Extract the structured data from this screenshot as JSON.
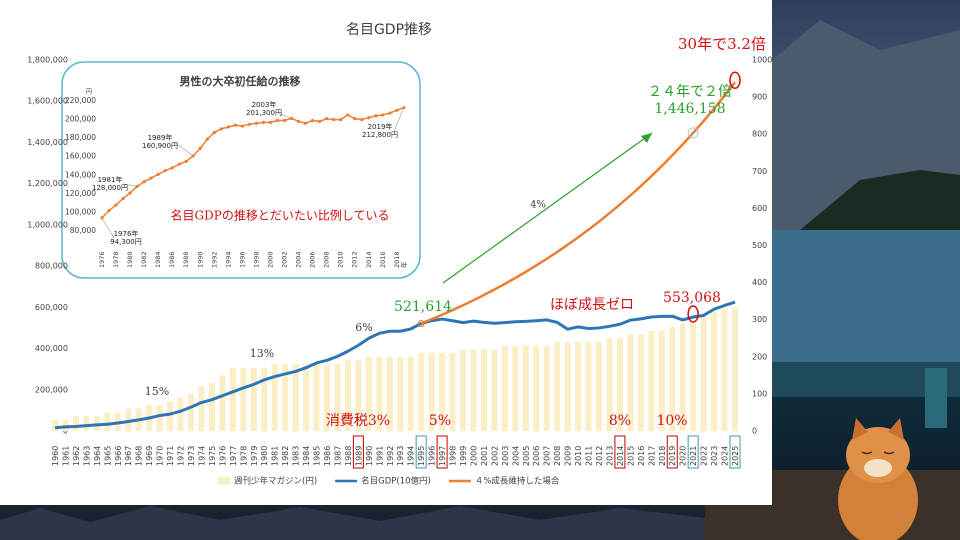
{
  "chart_data": [
    {
      "type": "combo",
      "title": "名目GDP推移",
      "categories": [
        "1960",
        "1961",
        "1962",
        "1963",
        "1964",
        "1965",
        "1966",
        "1967",
        "1968",
        "1969",
        "1970",
        "1971",
        "1972",
        "1973",
        "1974",
        "1975",
        "1976",
        "1977",
        "1978",
        "1979",
        "1980",
        "1981",
        "1982",
        "1983",
        "1984",
        "1985",
        "1986",
        "1987",
        "1988",
        "1989",
        "1990",
        "1991",
        "1992",
        "1993",
        "1994",
        "1995",
        "1996",
        "1997",
        "1998",
        "1999",
        "2000",
        "2001",
        "2002",
        "2003",
        "2004",
        "2005",
        "2006",
        "2007",
        "2008",
        "2009",
        "2010",
        "2011",
        "2012",
        "2013",
        "2014",
        "2015",
        "2016",
        "2017",
        "2018",
        "2019",
        "2020",
        "2021",
        "2022",
        "2023",
        "2024",
        "2025"
      ],
      "series": [
        {
          "name": "週刊少年マガジン(円)",
          "type": "bar",
          "axis": "y2",
          "color": "#fbeec4",
          "values": [
            30,
            30,
            40,
            40,
            40,
            50,
            50,
            60,
            60,
            70,
            70,
            80,
            90,
            100,
            120,
            130,
            150,
            170,
            170,
            170,
            170,
            180,
            180,
            180,
            180,
            180,
            180,
            180,
            190,
            190,
            200,
            200,
            200,
            200,
            200,
            210,
            210,
            210,
            210,
            220,
            220,
            220,
            220,
            230,
            230,
            230,
            230,
            230,
            240,
            240,
            240,
            240,
            240,
            250,
            250,
            260,
            260,
            270,
            270,
            280,
            290,
            300,
            310,
            320,
            330,
            330
          ]
        },
        {
          "name": "名目GDP(10億円)",
          "type": "line",
          "color": "#2e75b6",
          "values": [
            16000,
            20000,
            22000,
            26000,
            30000,
            33000,
            39000,
            46000,
            54000,
            63000,
            75000,
            82000,
            96000,
            116000,
            138000,
            152000,
            171000,
            190000,
            209000,
            226000,
            248000,
            264000,
            277000,
            289000,
            307000,
            330000,
            343000,
            362000,
            387000,
            416000,
            450000,
            474000,
            484000,
            484000,
            495000,
            521614,
            535000,
            543000,
            535000,
            526000,
            533000,
            527000,
            523000,
            526000,
            530000,
            532000,
            535000,
            539000,
            527000,
            494000,
            505000,
            497000,
            500000,
            508000,
            518000,
            538000,
            544000,
            553000,
            556000,
            557000,
            539000,
            553068,
            561000,
            591000,
            609000,
            625000
          ]
        },
        {
          "name": "４%成長維持した場合",
          "type": "line",
          "color": "#ed7d31",
          "values": [
            null,
            null,
            null,
            null,
            null,
            null,
            null,
            null,
            null,
            null,
            null,
            null,
            null,
            null,
            null,
            null,
            null,
            null,
            null,
            null,
            null,
            null,
            null,
            null,
            null,
            null,
            null,
            null,
            null,
            null,
            null,
            null,
            null,
            null,
            null,
            521614,
            542479,
            564178,
            586745,
            610215,
            634624,
            660009,
            686409,
            713866,
            742420,
            772116,
            803001,
            835121,
            868526,
            903267,
            939398,
            976974,
            1016053,
            1056695,
            1098963,
            1142921,
            1188638,
            1236184,
            1285631,
            1337056,
            1390538,
            1446158,
            1504004,
            1564164,
            1626730,
            1691799
          ]
        }
      ],
      "ylim": [
        0,
        1800000
      ],
      "yticks": [
        0,
        {
          "value": 200000,
          "label": "200,000"
        },
        {
          "value": 400000,
          "label": "400,000"
        },
        {
          "value": 600000,
          "label": "600,000"
        },
        {
          "value": 800000,
          "label": "800,000"
        },
        {
          "value": 1000000,
          "label": "1,000,000"
        },
        {
          "value": 1200000,
          "label": "1,200,000"
        },
        {
          "value": 1400000,
          "label": "1,400,000"
        },
        {
          "value": 1600000,
          "label": "1,600,000"
        },
        {
          "value": 1800000,
          "label": "1,800,000"
        }
      ],
      "y2lim": [
        0,
        1000
      ],
      "y2ticks": [
        0,
        100,
        200,
        300,
        400,
        500,
        600,
        700,
        800,
        900,
        1000
      ],
      "grid": false,
      "legend": "bottom",
      "annotations": [
        "30年で3.2倍",
        "２４年で２倍",
        "1,446,158",
        "4%",
        "521,614",
        "ほぼ成長ゼロ",
        "553,068",
        "6%",
        "13%",
        "15%",
        "消費税3%",
        "5%",
        "8%",
        "10%"
      ]
    },
    {
      "type": "line",
      "title": "男性の大卒初任給の推移",
      "y_unit": "円",
      "categories": [
        "1976",
        null,
        "1978",
        null,
        "1980",
        null,
        "1982",
        null,
        "1984",
        null,
        "1986",
        null,
        "1988",
        null,
        "1990",
        null,
        "1992",
        null,
        "1994",
        null,
        "1996",
        null,
        "1998",
        null,
        "2000",
        null,
        "2002",
        null,
        "2004",
        null,
        "2006",
        null,
        "2008",
        null,
        "2010",
        null,
        "2012",
        null,
        "2014",
        null,
        "2016",
        null,
        "2018",
        "年"
      ],
      "series": [
        {
          "name": "初任給",
          "color": "#ed7d31",
          "values": [
            94300,
            102000,
            108000,
            115000,
            121000,
            128000,
            133000,
            137000,
            141000,
            145000,
            148000,
            152000,
            155000,
            160900,
            169000,
            179000,
            186000,
            190000,
            192000,
            194000,
            193000,
            195000,
            196000,
            197000,
            197000,
            199000,
            199000,
            201300,
            198000,
            196000,
            199000,
            198000,
            201000,
            200000,
            200000,
            205000,
            201000,
            200000,
            202000,
            204000,
            205000,
            207000,
            210000,
            212800
          ]
        }
      ],
      "ylim": [
        80000,
        220000
      ],
      "yticks": [
        {
          "value": 80000,
          "label": "80,000"
        },
        {
          "value": 100000,
          "label": "100,000"
        },
        {
          "value": 120000,
          "label": "120,000"
        },
        {
          "value": 140000,
          "label": "140,000"
        },
        {
          "value": 160000,
          "label": "160,000"
        },
        {
          "value": 180000,
          "label": "180,000"
        },
        {
          "value": 200000,
          "label": "200,000"
        },
        {
          "value": 220000,
          "label": "220,000"
        }
      ],
      "grid": false,
      "annotations": [
        [
          "1976年",
          "94,300円"
        ],
        [
          "1981年",
          "128,000円"
        ],
        [
          "1989年",
          "160,900円"
        ],
        [
          "2003年",
          "201,300円"
        ],
        [
          "2019年",
          "212,800円"
        ]
      ],
      "note": "名目GDPの推移とだいたい比例している"
    }
  ]
}
